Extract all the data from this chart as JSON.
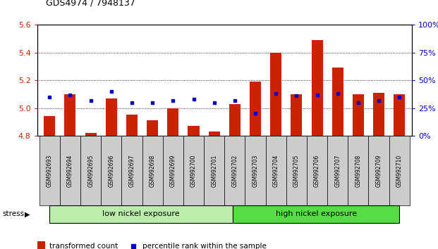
{
  "title": "GDS4974 / 7948137",
  "samples": [
    "GSM992693",
    "GSM992694",
    "GSM992695",
    "GSM992696",
    "GSM992697",
    "GSM992698",
    "GSM992699",
    "GSM992700",
    "GSM992701",
    "GSM992702",
    "GSM992703",
    "GSM992704",
    "GSM992705",
    "GSM992706",
    "GSM992707",
    "GSM992708",
    "GSM992709",
    "GSM992710"
  ],
  "transformed_count": [
    4.94,
    5.1,
    4.82,
    5.07,
    4.95,
    4.91,
    5.0,
    4.87,
    4.83,
    5.03,
    5.19,
    5.4,
    5.1,
    5.49,
    5.29,
    5.1,
    5.11,
    5.1
  ],
  "percentile_rank": [
    35,
    37,
    32,
    40,
    30,
    30,
    32,
    33,
    30,
    32,
    20,
    38,
    36,
    37,
    38,
    30,
    32,
    35
  ],
  "ylim_left": [
    4.8,
    5.6
  ],
  "ylim_right": [
    0,
    100
  ],
  "yticks_left": [
    4.8,
    5.0,
    5.2,
    5.4,
    5.6
  ],
  "yticks_right": [
    0,
    25,
    50,
    75,
    100
  ],
  "bar_color": "#cc2200",
  "dot_color": "#0000cc",
  "baseline": 4.8,
  "n_group1": 10,
  "n_group2": 8,
  "group1_label": "low nickel exposure",
  "group2_label": "high nickel exposure",
  "stress_label": "stress",
  "legend_bar": "transformed count",
  "legend_dot": "percentile rank within the sample",
  "group1_color": "#bbeeaa",
  "group2_color": "#55dd44",
  "tickbox_color": "#cccccc",
  "background_color": "#ffffff",
  "tick_label_color_left": "#cc2200",
  "tick_label_color_right": "#0000cc"
}
